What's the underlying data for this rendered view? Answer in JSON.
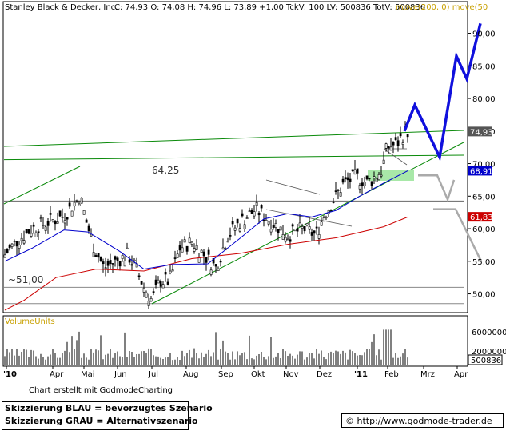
{
  "header": {
    "title": "Stanley Black & Decker, Inc.",
    "quote": "C: 74,93 O: 74,08 H: 74,96 L: 73,89 +1,00 TckV: 100 LV: 500836 TotV: 500836",
    "ma_label": "move(200, 0) move(50"
  },
  "chart_data": [
    {
      "type": "line",
      "title": "Stanley Black & Decker, Inc.",
      "ylim": [
        47,
        92
      ],
      "y_ticks": [
        "50,00",
        "55,00",
        "60,00",
        "65,00",
        "70,00",
        "75,00",
        "80,00",
        "85,00",
        "90,00"
      ],
      "x_ticks": [
        "'10",
        "Apr",
        "Mai",
        "Jun",
        "Jul",
        "Aug",
        "Sep",
        "Okt",
        "Nov",
        "Dez",
        "'11",
        "Feb",
        "Mrz",
        "Apr"
      ],
      "price_labels": {
        "last": "74,93",
        "ma50": "68,91",
        "ma200": "61,83"
      },
      "annotations": {
        "resistance": "64,25",
        "support": "~51,00"
      },
      "series": [
        {
          "name": "move(200, 0)",
          "color": "#cc0000",
          "values": [
            [
              6,
              47.5
            ],
            [
              30,
              49
            ],
            [
              70,
              52.5
            ],
            [
              120,
              53.8
            ],
            [
              180,
              53.5
            ],
            [
              240,
              55.4
            ],
            [
              300,
              56.2
            ],
            [
              360,
              57.6
            ],
            [
              420,
              58.6
            ],
            [
              480,
              60.3
            ],
            [
              510,
              61.8
            ]
          ]
        },
        {
          "name": "move(50",
          "color": "#0000cc",
          "values": [
            [
              6,
              55
            ],
            [
              40,
              57
            ],
            [
              80,
              59.8
            ],
            [
              110,
              59.5
            ],
            [
              150,
              56.5
            ],
            [
              180,
              53.8
            ],
            [
              215,
              54.5
            ],
            [
              260,
              54.6
            ],
            [
              300,
              58.5
            ],
            [
              330,
              61.5
            ],
            [
              360,
              62.3
            ],
            [
              390,
              61.8
            ],
            [
              420,
              62.8
            ],
            [
              450,
              65
            ],
            [
              480,
              67
            ],
            [
              510,
              68.9
            ]
          ]
        }
      ],
      "scenarios": [
        {
          "name": "blau",
          "color": "#1010dd",
          "values": [
            [
              506,
              75
            ],
            [
              519,
              79
            ],
            [
              550,
              71
            ],
            [
              571,
              86.5
            ],
            [
              584,
              83
            ],
            [
              601,
              91.5
            ]
          ]
        },
        {
          "name": "grau",
          "color": "#aaaaaa",
          "values": [
            [
              523,
              68.2
            ],
            [
              547,
              68.2
            ],
            [
              560,
              64.5
            ],
            [
              568,
              67.5
            ],
            [
              542,
              63
            ],
            [
              570,
              63
            ],
            [
              602,
              55
            ]
          ]
        }
      ]
    },
    {
      "type": "bar",
      "title": "VolumeUnits",
      "y_ticks": [
        "6000000",
        "2000000"
      ],
      "last_label": "500836",
      "ylim": [
        0,
        7000000
      ]
    }
  ],
  "footer": {
    "credit": "Chart erstellt mit GodmodeCharting",
    "legend_blue": "Skizzierung BLAU = bevorzugtes Szenario",
    "legend_gray": "Skizzierung GRAU = Alternativszenario",
    "url": "© http://www.godmode-trader.de"
  }
}
